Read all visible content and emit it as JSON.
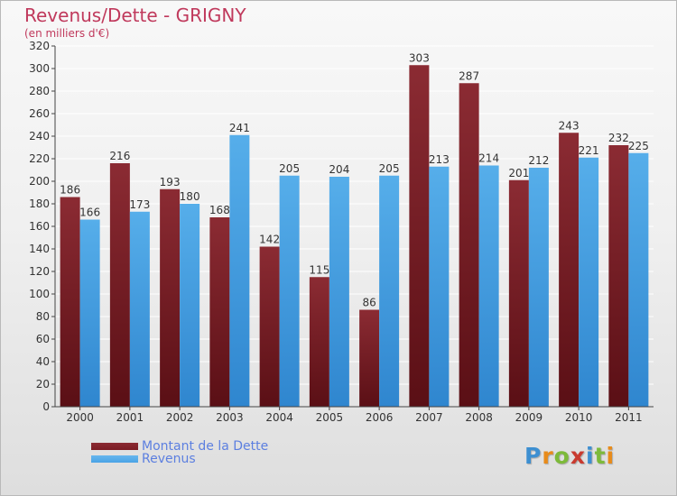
{
  "header": {
    "title": "Revenus/Dette - GRIGNY",
    "subtitle": "(en milliers d'€)"
  },
  "legend": {
    "debt_label": "Montant de la Dette",
    "revenue_label": "Revenus"
  },
  "logo": {
    "letters": [
      "P",
      "r",
      "o",
      "x",
      "i",
      "t",
      "i"
    ],
    "colors": [
      "#3d8fd1",
      "#e88b1a",
      "#7dba3a",
      "#c93a2f",
      "#3d8fd1",
      "#7dba3a",
      "#e88b1a"
    ]
  },
  "colors": {
    "debt": "#7b1c24",
    "revenue": "#4aa3e6"
  },
  "chart_data": {
    "type": "bar",
    "categories": [
      "2000",
      "2001",
      "2002",
      "2003",
      "2004",
      "2005",
      "2006",
      "2007",
      "2008",
      "2009",
      "2010",
      "2011"
    ],
    "series": [
      {
        "name": "Montant de la Dette",
        "values": [
          186,
          216,
          193,
          168,
          142,
          115,
          86,
          303,
          287,
          201,
          243,
          232
        ]
      },
      {
        "name": "Revenus",
        "values": [
          166,
          173,
          180,
          241,
          205,
          204,
          205,
          213,
          214,
          212,
          221,
          225
        ]
      }
    ],
    "yticks": [
      "0",
      "20",
      "40",
      "60",
      "80",
      "100",
      "120",
      "140",
      "160",
      "180",
      "200",
      "220",
      "240",
      "260",
      "280",
      "300",
      "320"
    ],
    "ylim": [
      0,
      320
    ],
    "grid": true,
    "legend_position": "bottom-left"
  }
}
